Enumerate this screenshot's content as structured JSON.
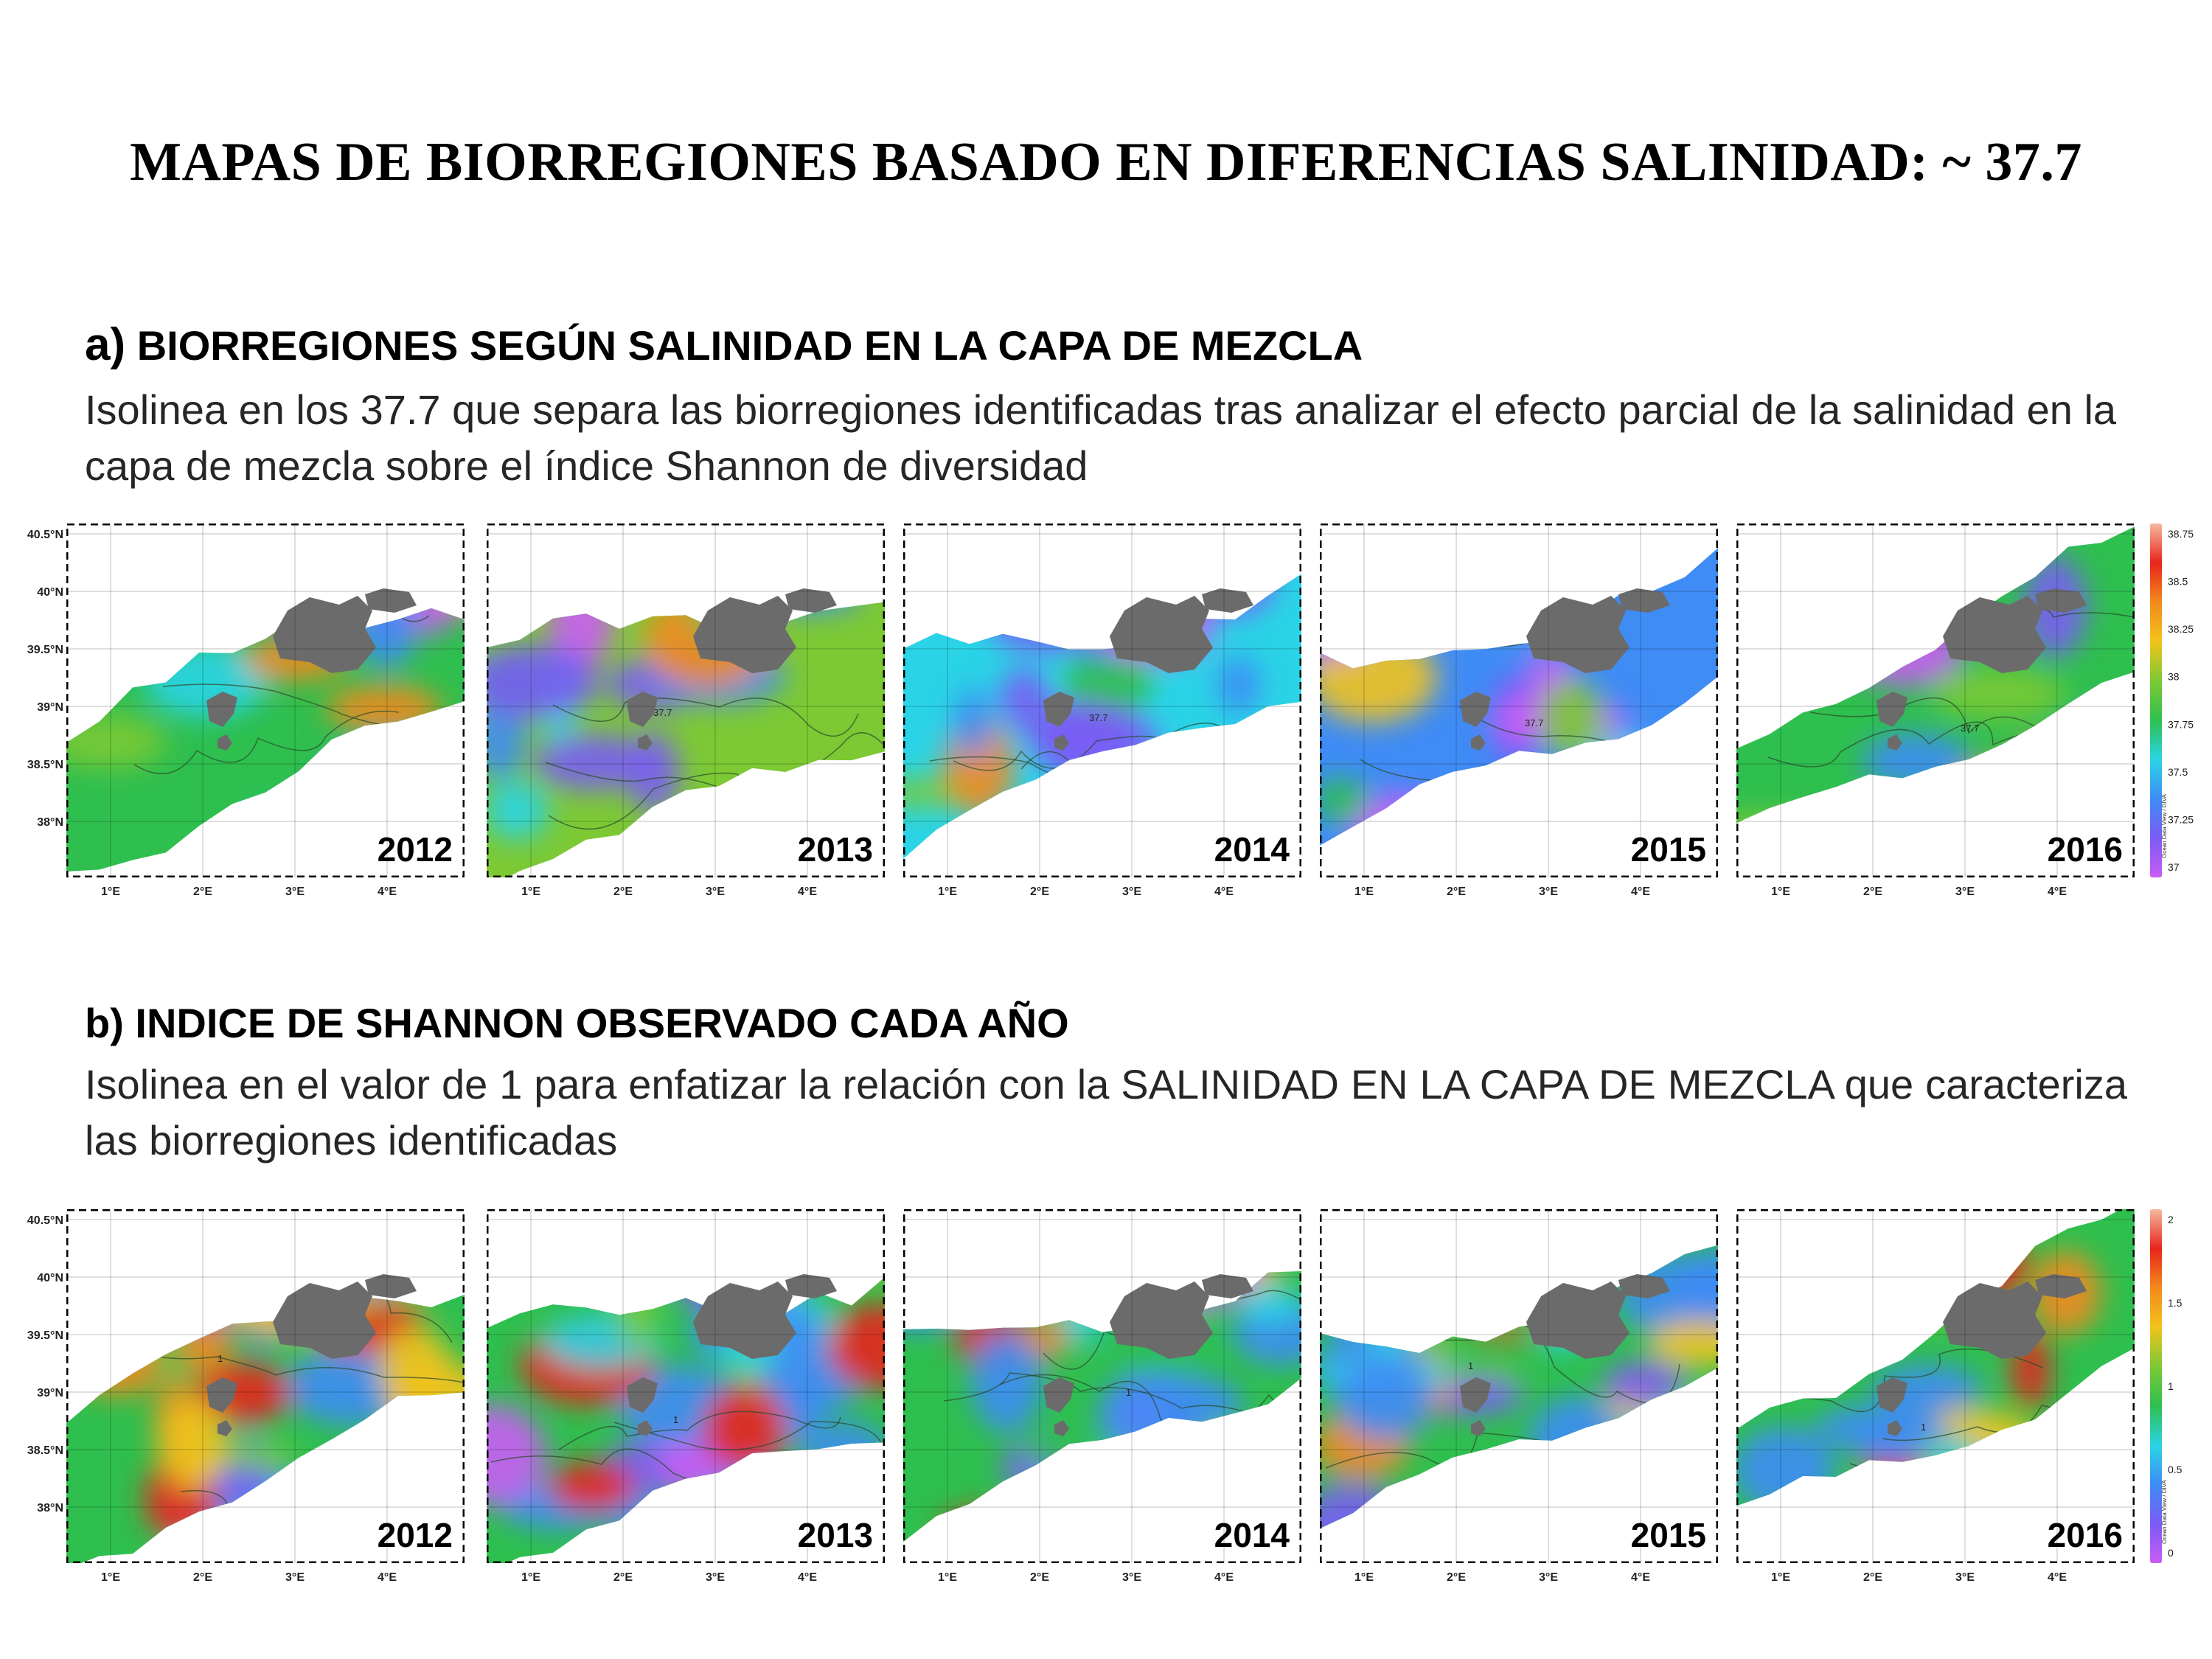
{
  "title": "MAPAS DE BIORREGIONES BASADO EN  DIFERENCIAS SALINIDAD: ~ 37.7",
  "section_a": {
    "label": "a)",
    "heading": "BIORREGIONES SEGÚN SALINIDAD EN LA CAPA DE MEZCLA",
    "description": "Isolinea en los 37.7 que separa las biorregiones identificadas tras analizar el efecto parcial de la salinidad en la capa de mezcla  sobre el índice Shannon de diversidad",
    "years": [
      "2012",
      "2013",
      "2014",
      "2015",
      "2016"
    ],
    "contour_label": "37.7",
    "colorbar_ticks": [
      "38.75",
      "38.5",
      "38.25",
      "38",
      "37.75",
      "37.5",
      "37.25",
      "37"
    ],
    "colorbar_credit": "Ocean Data View / DIVA"
  },
  "section_b": {
    "heading": "b) INDICE DE SHANNON OBSERVADO CADA AÑO",
    "description": "Isolinea en el valor de 1 para enfatizar la relación con la SALINIDAD EN LA CAPA DE MEZCLA que caracteriza las biorregiones identificadas",
    "years": [
      "2012",
      "2013",
      "2014",
      "2015",
      "2016"
    ],
    "contour_label": "1",
    "colorbar_ticks": [
      "2",
      "1.5",
      "1",
      "0.5",
      "0"
    ],
    "colorbar_credit": "Ocean Data View / DIVA"
  },
  "axes": {
    "lat_labels": [
      "40.5°N",
      "40°N",
      "39.5°N",
      "39°N",
      "38.5°N",
      "38°N"
    ],
    "lon_labels": [
      "1°E",
      "2°E",
      "3°E",
      "4°E"
    ]
  },
  "colors": {
    "land": "#6b6b6b",
    "scale": [
      "#ca5cf5",
      "#7a5cf5",
      "#3f8cf5",
      "#2ad4e6",
      "#2fbf4f",
      "#7cc934",
      "#f2c31c",
      "#f28a1c",
      "#e8251c",
      "#f5b8a0"
    ]
  }
}
